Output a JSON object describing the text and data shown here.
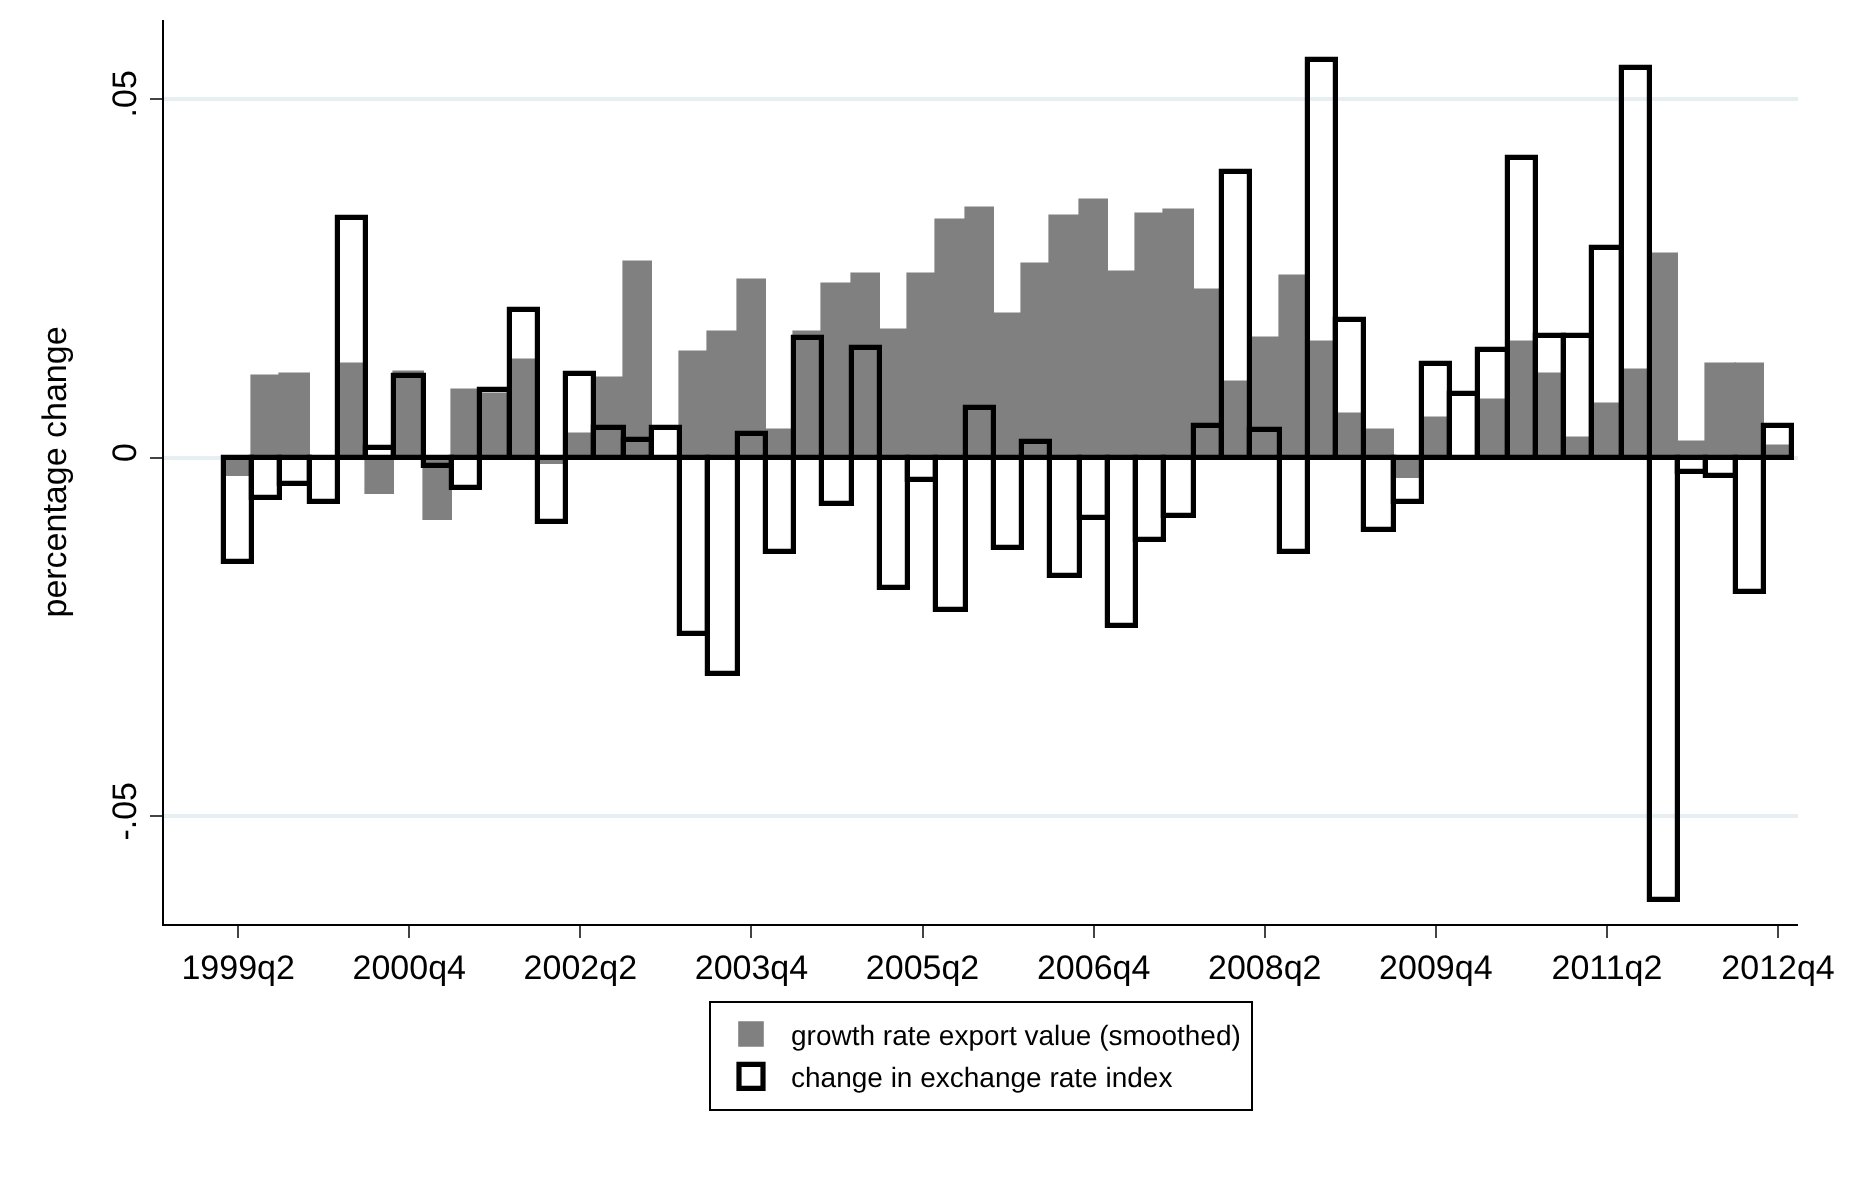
{
  "chart_data": {
    "type": "bar",
    "ylabel": "percentage change",
    "categories": [
      "1999q2",
      null,
      null,
      null,
      null,
      null,
      "2000q4",
      null,
      null,
      null,
      null,
      null,
      "2002q2",
      null,
      null,
      null,
      null,
      null,
      "2003q4",
      null,
      null,
      null,
      null,
      null,
      "2005q2",
      null,
      null,
      null,
      null,
      null,
      "2006q4",
      null,
      null,
      null,
      null,
      null,
      "2008q2",
      null,
      null,
      null,
      null,
      null,
      "2009q4",
      null,
      null,
      null,
      null,
      null,
      "2011q2",
      null,
      null,
      null,
      null,
      null,
      "2012q4"
    ],
    "series": [
      {
        "name": "growth rate export value (smoothed)",
        "color": "#808080",
        "values": [
          -0.0026,
          0.0115,
          0.0117,
          0,
          0.013,
          -0.0052,
          0.0119,
          -0.0088,
          0.0094,
          0.009,
          0.0137,
          -0.0009,
          0.0034,
          0.011,
          0.0274,
          0,
          0.0148,
          0.0176,
          0.0247,
          0.0039,
          0.0176,
          0.0242,
          0.0255,
          0.0177,
          0.0255,
          0.033,
          0.0347,
          0.0201,
          0.0269,
          0.0337,
          0.0358,
          0.0259,
          0.034,
          0.0344,
          0.0234,
          0.0106,
          0.0167,
          0.0252,
          0.016,
          0.006,
          0.0039,
          -0.0028,
          0.0055,
          0,
          0.0081,
          0.0162,
          0.0118,
          0.0027,
          0.0076,
          0.0122,
          0.0285,
          0.0022,
          0.013,
          0.013,
          0.0017
        ]
      },
      {
        "name": "change in exchange rate index",
        "color": "#000000",
        "values": [
          -0.0146,
          -0.0056,
          -0.0037,
          -0.0063,
          0.0333,
          0.0014,
          0.0113,
          -0.0013,
          -0.0042,
          0.0093,
          0.0206,
          -0.0091,
          0.0117,
          0.0042,
          0.0025,
          0.004,
          -0.0246,
          -0.0302,
          0.0033,
          -0.0131,
          0.0166,
          -0.0065,
          0.0153,
          -0.0183,
          -0.0031,
          -0.0211,
          0.0069,
          -0.0125,
          0.0022,
          -0.0165,
          -0.0085,
          -0.0234,
          -0.0114,
          -0.0081,
          0.0045,
          0.0398,
          0.0039,
          -0.0131,
          0.0553,
          0.0192,
          -0.01,
          -0.0061,
          0.0131,
          0.009,
          0.015,
          0.0417,
          0.0169,
          0.0169,
          0.0293,
          0.0542,
          -0.0616,
          -0.0021,
          -0.0026,
          -0.0188,
          0.0045
        ]
      }
    ],
    "ylim": [
      -0.065,
      0.061
    ],
    "yticks": [
      {
        "value": -0.05,
        "label": "-.05"
      },
      {
        "value": 0,
        "label": "0"
      },
      {
        "value": 0.05,
        "label": ".05"
      }
    ],
    "grid": "y",
    "legend": "bottom"
  }
}
